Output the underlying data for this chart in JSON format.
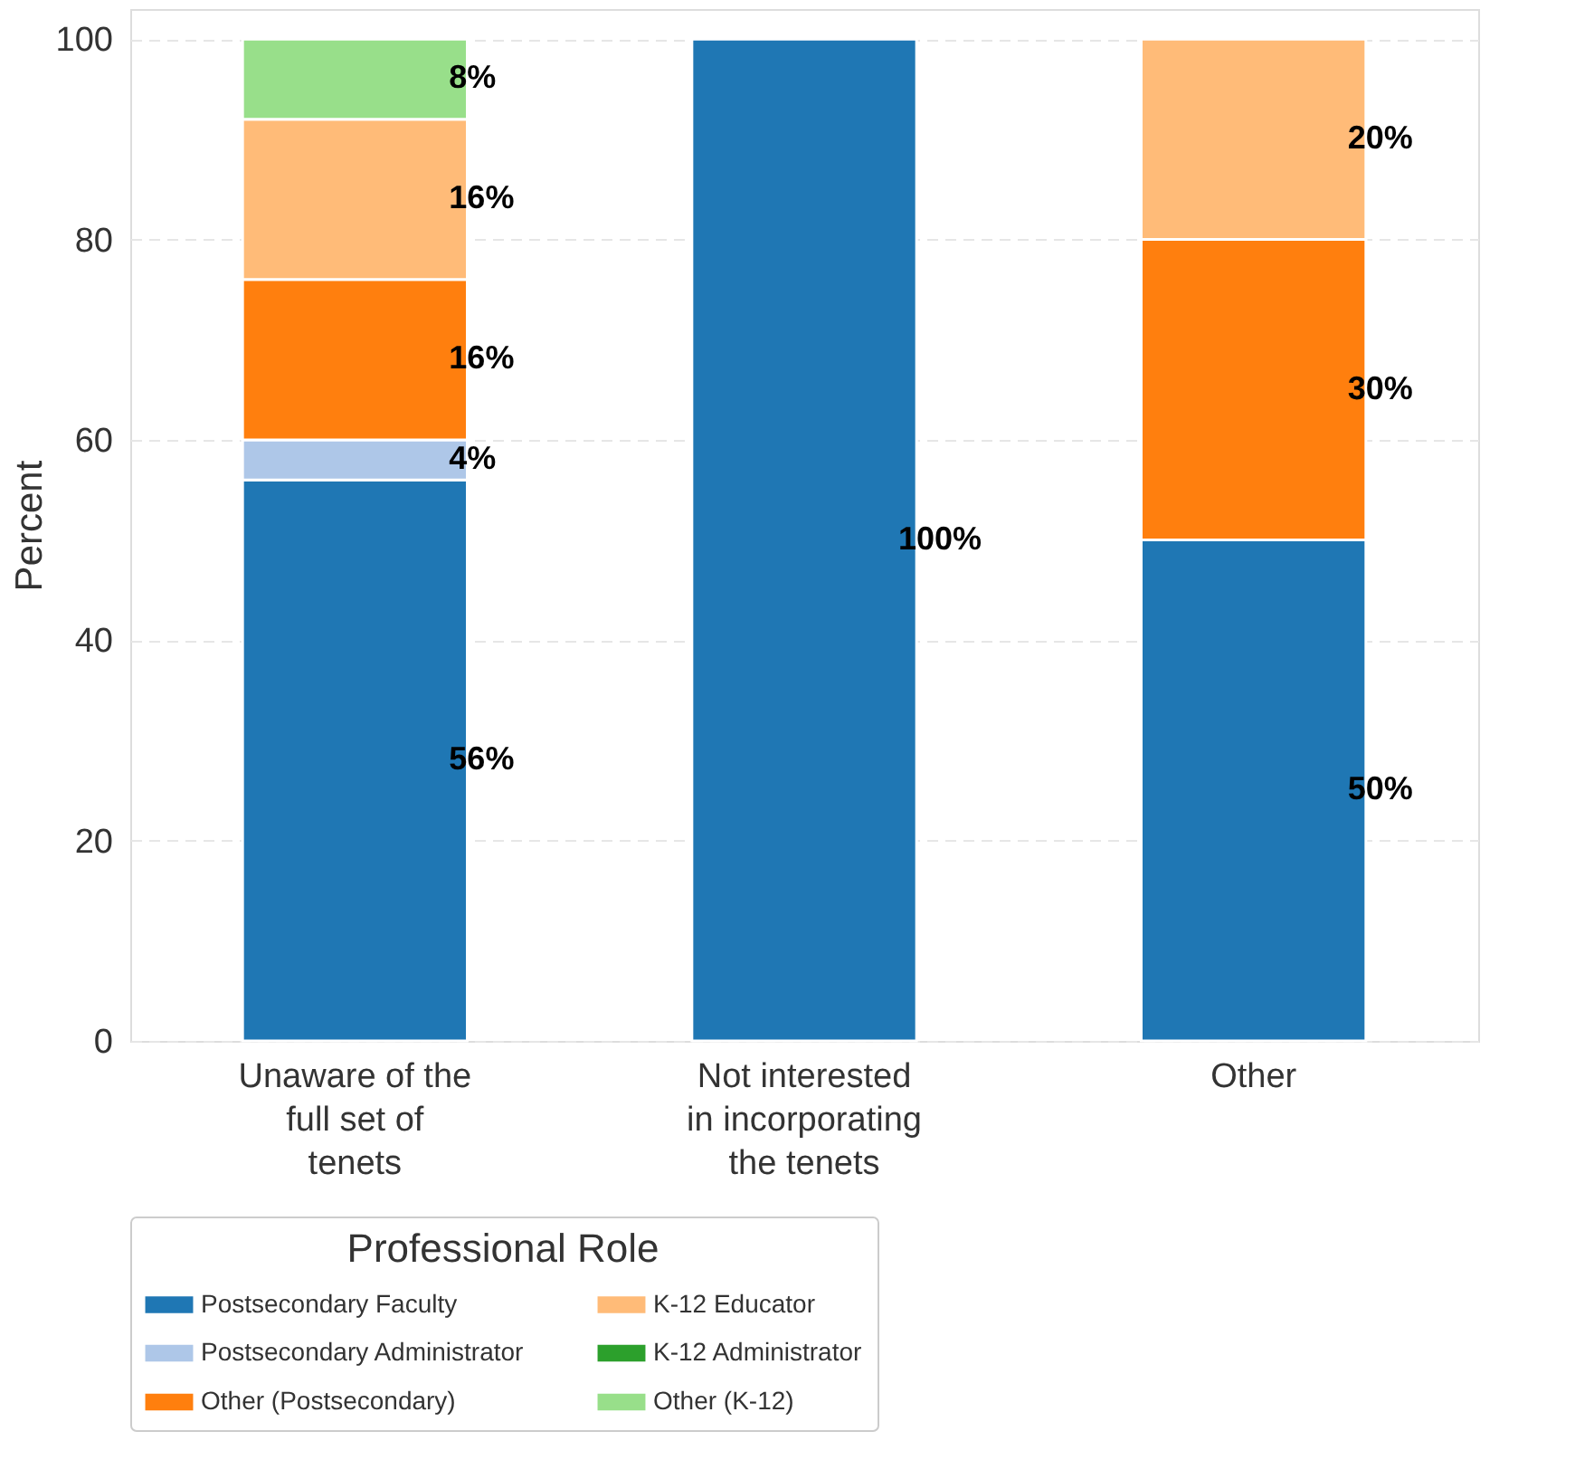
{
  "chart_data": {
    "type": "bar",
    "stacked": true,
    "ylabel": "Percent",
    "legend_title": "Professional Role",
    "legend": "bottom",
    "categories": [
      "Unaware of the\nfull set of\ntenets",
      "Not interested\nin incorporating\nthe tenets",
      "Other"
    ],
    "series": [
      {
        "name": "Postsecondary Faculty",
        "color": "#1f77b4",
        "values": [
          56,
          100,
          50
        ],
        "value_labels": [
          "56%",
          "100%",
          "50%"
        ]
      },
      {
        "name": "Postsecondary Administrator",
        "color": "#aec7e8",
        "values": [
          4,
          null,
          null
        ],
        "value_labels": [
          "4%",
          null,
          null
        ]
      },
      {
        "name": "Other (Postsecondary)",
        "color": "#ff7f0e",
        "values": [
          16,
          null,
          30
        ],
        "value_labels": [
          "16%",
          null,
          "30%"
        ]
      },
      {
        "name": "K-12 Educator",
        "color": "#ffbb78",
        "values": [
          16,
          null,
          20
        ],
        "value_labels": [
          "16%",
          null,
          "20%"
        ]
      },
      {
        "name": "K-12 Administrator",
        "color": "#2ca02c",
        "values": [
          null,
          null,
          null
        ]
      },
      {
        "name": "Other (K-12)",
        "color": "#98df8a",
        "values": [
          8,
          null,
          null
        ],
        "value_labels": [
          "8%",
          null,
          null
        ]
      }
    ],
    "ylim": [
      0,
      103
    ],
    "yticks": [
      0,
      20,
      40,
      60,
      80,
      100
    ],
    "grid": "y"
  }
}
